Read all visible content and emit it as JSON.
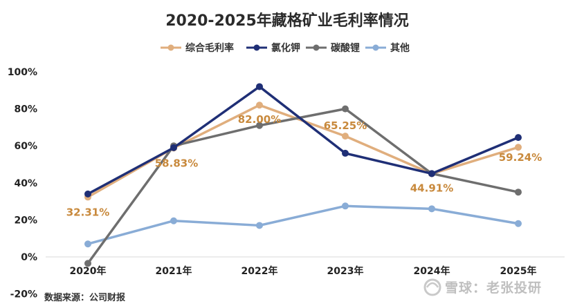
{
  "chart_data": {
    "type": "line",
    "title": "2020-2025年藏格矿业毛利率情况",
    "categories": [
      "2020年",
      "2021年",
      "2022年",
      "2023年",
      "2024年",
      "2025年"
    ],
    "ylim": [
      -0.2,
      1.0
    ],
    "yticks": [
      "100%",
      "80%",
      "60%",
      "40%",
      "20%",
      "0%",
      "-20%"
    ],
    "ytick_values": [
      1.0,
      0.8,
      0.6,
      0.4,
      0.2,
      0.0,
      -0.2
    ],
    "grid": false,
    "legend_position": "top",
    "series": [
      {
        "name": "综合毛利率",
        "color": "#e0ae7d",
        "values": [
          0.3231,
          0.5883,
          0.82,
          0.6525,
          0.4491,
          0.5924
        ],
        "labels": [
          "32.31%",
          "58.83%",
          "82.00%",
          "65.25%",
          "44.91%",
          "59.24%"
        ]
      },
      {
        "name": "氯化钾",
        "color": "#1f2f76",
        "values": [
          0.34,
          0.59,
          0.92,
          0.56,
          0.45,
          0.645
        ]
      },
      {
        "name": "碳酸锂",
        "color": "#6e6e6e",
        "values": [
          -0.035,
          0.6,
          0.71,
          0.8,
          0.45,
          0.35
        ]
      },
      {
        "name": "其他",
        "color": "#89acd6",
        "values": [
          0.07,
          0.195,
          0.17,
          0.275,
          0.26,
          0.18
        ]
      }
    ],
    "label_color": "#c8893c"
  },
  "footer": {
    "source": "数据来源：公司财报",
    "watermark": "雪球：老张投研"
  }
}
